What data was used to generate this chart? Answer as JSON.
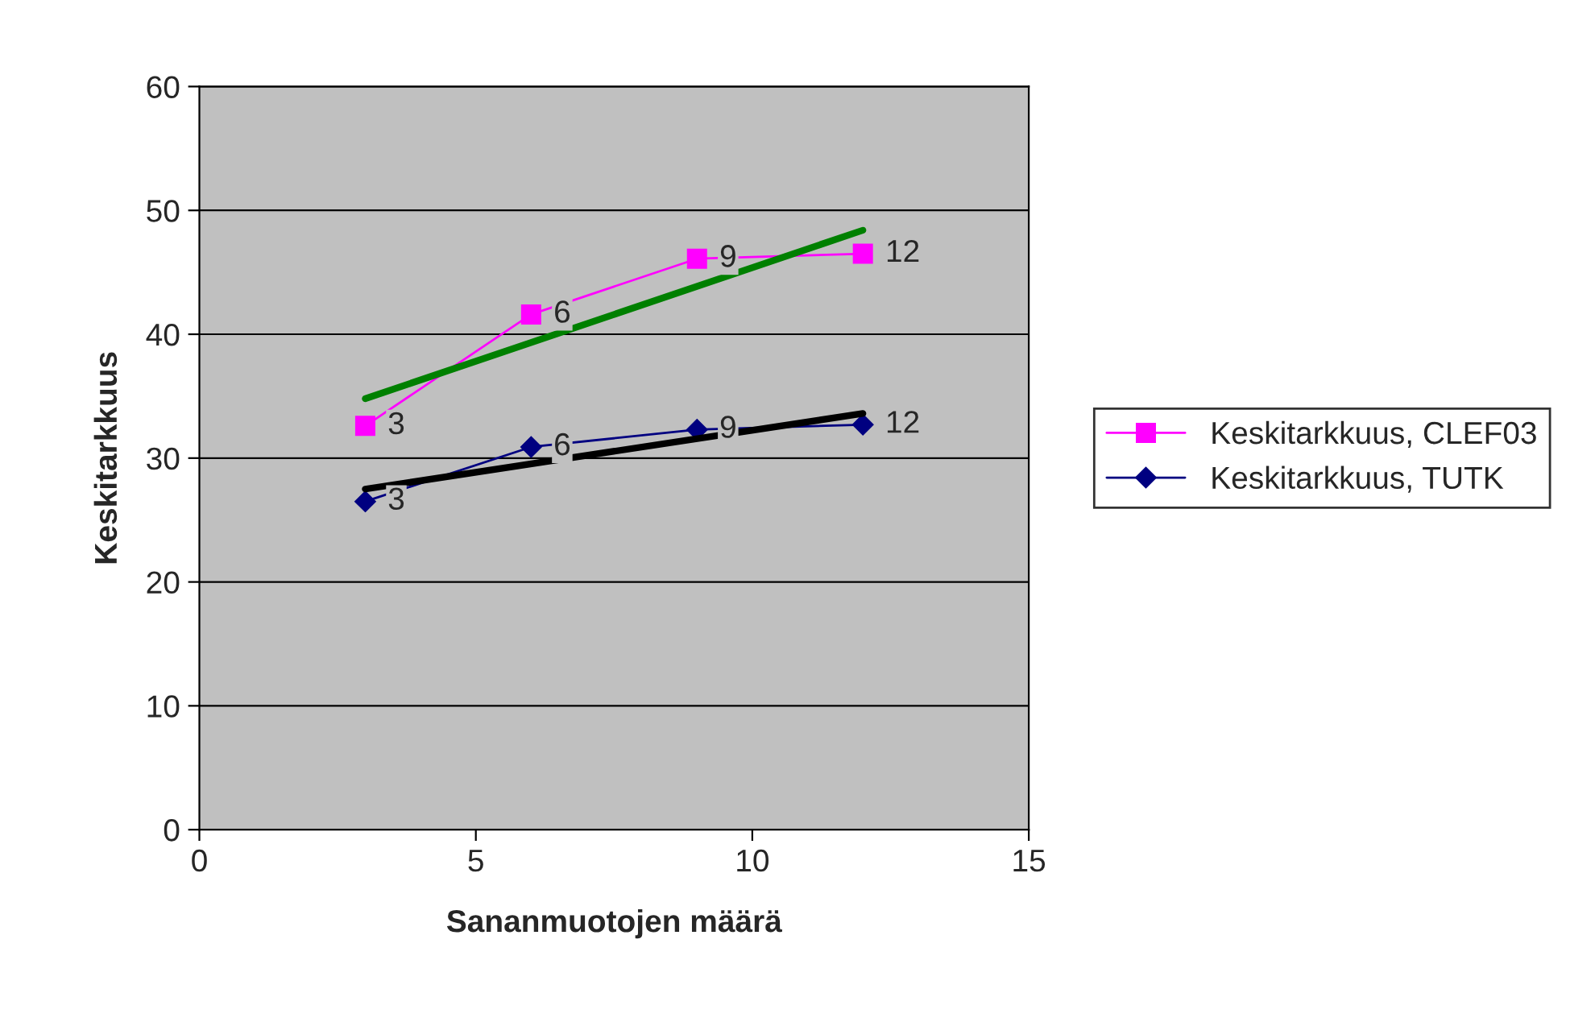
{
  "chart_data": {
    "type": "line",
    "xlabel": "Sananmuotojen määrä",
    "ylabel": "Keskitarkkuus",
    "xlim": [
      0,
      15
    ],
    "xticks": [
      0,
      5,
      10,
      15
    ],
    "ylim": [
      0,
      60
    ],
    "yticks": [
      0,
      10,
      20,
      30,
      40,
      50,
      60
    ],
    "grid": "y",
    "legend": "right",
    "annotations": [
      {
        "text": "3",
        "x": 3,
        "y": 32.6
      },
      {
        "text": "6",
        "x": 6,
        "y": 41.6
      },
      {
        "text": "9",
        "x": 9,
        "y": 46.1
      },
      {
        "text": "12",
        "x": 12,
        "y": 46.5
      },
      {
        "text": "3",
        "x": 3,
        "y": 26.5
      },
      {
        "text": "6",
        "x": 6,
        "y": 30.9
      },
      {
        "text": "9",
        "x": 9,
        "y": 32.3
      },
      {
        "text": "12",
        "x": 12,
        "y": 32.7
      }
    ],
    "series": [
      {
        "name": "Keskitarkkuus, CLEF03",
        "color": "#ff00ff",
        "x": [
          3,
          6,
          9,
          12
        ],
        "values": [
          32.6,
          41.6,
          46.1,
          46.5
        ],
        "marker": "square"
      },
      {
        "name": "Keskitarkkuus, TUTK",
        "color": "#000080",
        "x": [
          3,
          6,
          9,
          12
        ],
        "values": [
          26.5,
          30.9,
          32.3,
          32.7
        ],
        "marker": "diamond"
      },
      {
        "type": "line",
        "color": "#008000",
        "x": [
          3,
          12
        ],
        "values": [
          34.8,
          48.4
        ],
        "marker": "none"
      },
      {
        "type": "line",
        "color": "#000000",
        "x": [
          3,
          12
        ],
        "values": [
          27.5,
          33.6
        ],
        "marker": "none"
      }
    ]
  }
}
